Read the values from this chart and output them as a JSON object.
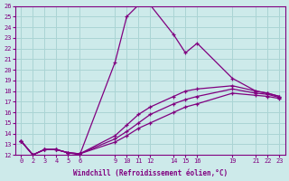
{
  "xlabel": "Windchill (Refroidissement éolien,°C)",
  "bg_color": "#cdeaea",
  "grid_color": "#aad4d4",
  "line_color": "#800080",
  "xlabels": [
    "0",
    "2",
    "3",
    "4",
    "5",
    "6",
    "9",
    "101112",
    "141516",
    "19",
    "212223"
  ],
  "ylim": [
    12,
    26
  ],
  "yticks": [
    12,
    13,
    14,
    15,
    16,
    17,
    18,
    19,
    20,
    21,
    22,
    23,
    24,
    25,
    26
  ],
  "series": [
    {
      "x": [
        0,
        1,
        2,
        3,
        4,
        5,
        8,
        9,
        10,
        11,
        13,
        14,
        15,
        18,
        20,
        21,
        22
      ],
      "y": [
        13.3,
        12.0,
        12.5,
        12.5,
        12.2,
        12.0,
        20.7,
        25.0,
        26.1,
        26.1,
        23.3,
        21.6,
        22.5,
        19.2,
        18.0,
        17.8,
        17.5
      ]
    },
    {
      "x": [
        0,
        1,
        2,
        3,
        4,
        5,
        8,
        9,
        10,
        11,
        13,
        14,
        15,
        18,
        20,
        21,
        22
      ],
      "y": [
        13.3,
        12.0,
        12.5,
        12.5,
        12.2,
        12.1,
        13.8,
        14.8,
        15.8,
        16.5,
        17.5,
        18.0,
        18.2,
        18.5,
        18.0,
        17.8,
        17.5
      ]
    },
    {
      "x": [
        0,
        1,
        2,
        3,
        4,
        5,
        8,
        9,
        10,
        11,
        13,
        14,
        15,
        18,
        20,
        21,
        22
      ],
      "y": [
        13.3,
        12.0,
        12.5,
        12.5,
        12.2,
        12.1,
        13.5,
        14.2,
        15.0,
        15.8,
        16.8,
        17.2,
        17.5,
        18.2,
        17.8,
        17.7,
        17.4
      ]
    },
    {
      "x": [
        0,
        1,
        2,
        3,
        4,
        5,
        8,
        9,
        10,
        11,
        13,
        14,
        15,
        18,
        20,
        21,
        22
      ],
      "y": [
        13.3,
        12.0,
        12.5,
        12.5,
        12.2,
        12.1,
        13.2,
        13.8,
        14.5,
        15.0,
        16.0,
        16.5,
        16.8,
        17.8,
        17.6,
        17.5,
        17.3
      ]
    }
  ],
  "xtick_positions": [
    0,
    1,
    2,
    3,
    4,
    5,
    8,
    9,
    10,
    11,
    13,
    14,
    15,
    18,
    20,
    21,
    22
  ],
  "xtick_labels": [
    "0",
    "2",
    "3",
    "4",
    "5",
    "6",
    "9",
    "10",
    "11",
    "12",
    "14",
    "15",
    "16",
    "19",
    "21",
    "22",
    "23"
  ]
}
